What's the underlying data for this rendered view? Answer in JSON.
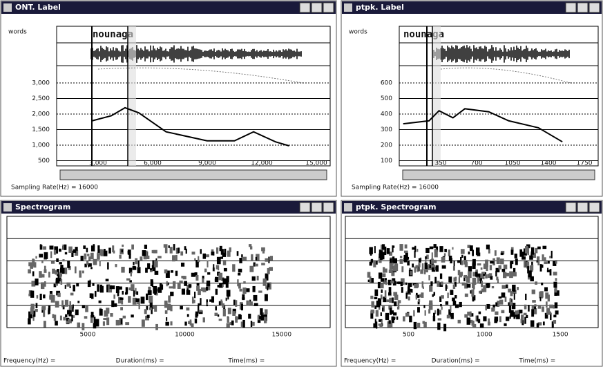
{
  "windows": [
    {
      "title": "ONT. Label",
      "tier_label": "words",
      "word": "nounaga",
      "y_labels": [
        "3,000",
        "2,500",
        "2,000",
        "1,500",
        "1,000",
        "500"
      ],
      "x_labels": [
        "3,000",
        "6,000",
        "9,000",
        "12,000",
        "15,000"
      ],
      "status": "Sampling Rate(Hz) = 16000"
    },
    {
      "title": "ptpk. Label",
      "tier_label": "words",
      "word": "nounaga",
      "y_labels": [
        "600",
        "500",
        "400",
        "300",
        "200",
        "100"
      ],
      "x_labels": [
        "350",
        "700",
        "1050",
        "1400",
        "1750"
      ],
      "status": "Sampling Rate(Hz) = 16000"
    },
    {
      "title": "Spectrogram",
      "x_labels": [
        "5000",
        "10000",
        "15000"
      ],
      "status": [
        "Frequency(Hz) =",
        "Duration(ms) =",
        "Time(ms) ="
      ]
    },
    {
      "title": "ptpk. Spectrogram",
      "x_labels": [
        "500",
        "1000",
        "1500"
      ],
      "status": [
        "Frequency(Hz) =",
        "Duration(ms) =",
        "Time(ms) ="
      ]
    }
  ]
}
